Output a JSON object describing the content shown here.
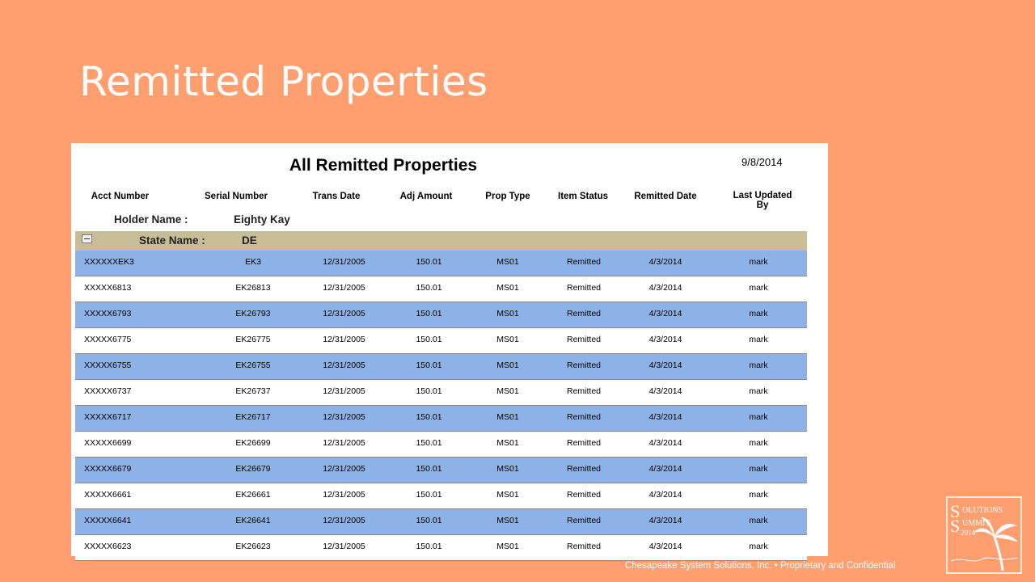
{
  "slide": {
    "title": "Remitted Properties",
    "footer": "Chesapeake System Solutions, Inc. • Proprietary and Confidential",
    "logo": {
      "line1": "OLUTIONS",
      "line2": "UMMIT",
      "year": "2014",
      "icon": "palm-tree-icon"
    }
  },
  "report": {
    "title": "All Remitted Properties",
    "date": "9/8/2014",
    "columns": {
      "acct": "Acct Number",
      "serial": "Serial Number",
      "trans_date": "Trans Date",
      "adj_amount": "Adj Amount",
      "prop_type": "Prop Type",
      "item_status": "Item Status",
      "remitted_date": "Remitted Date",
      "last_updated_by_1": "Last Updated",
      "last_updated_by_2": "By"
    },
    "holder": {
      "label": "Holder Name :",
      "value": "Eighty Kay"
    },
    "state": {
      "label": "State Name :",
      "value": "DE"
    },
    "rows": [
      {
        "acct": "XXXXXXEK3",
        "serial": "EK3",
        "trans_date": "12/31/2005",
        "adj_amount": "150.01",
        "prop_type": "MS01",
        "status": "Remitted",
        "remitted_date": "4/3/2014",
        "updated_by": "mark"
      },
      {
        "acct": "XXXXX6813",
        "serial": "EK26813",
        "trans_date": "12/31/2005",
        "adj_amount": "150.01",
        "prop_type": "MS01",
        "status": "Remitted",
        "remitted_date": "4/3/2014",
        "updated_by": "mark"
      },
      {
        "acct": "XXXXX6793",
        "serial": "EK26793",
        "trans_date": "12/31/2005",
        "adj_amount": "150.01",
        "prop_type": "MS01",
        "status": "Remitted",
        "remitted_date": "4/3/2014",
        "updated_by": "mark"
      },
      {
        "acct": "XXXXX6775",
        "serial": "EK26775",
        "trans_date": "12/31/2005",
        "adj_amount": "150.01",
        "prop_type": "MS01",
        "status": "Remitted",
        "remitted_date": "4/3/2014",
        "updated_by": "mark"
      },
      {
        "acct": "XXXXX6755",
        "serial": "EK26755",
        "trans_date": "12/31/2005",
        "adj_amount": "150.01",
        "prop_type": "MS01",
        "status": "Remitted",
        "remitted_date": "4/3/2014",
        "updated_by": "mark"
      },
      {
        "acct": "XXXXX6737",
        "serial": "EK26737",
        "trans_date": "12/31/2005",
        "adj_amount": "150.01",
        "prop_type": "MS01",
        "status": "Remitted",
        "remitted_date": "4/3/2014",
        "updated_by": "mark"
      },
      {
        "acct": "XXXXX6717",
        "serial": "EK26717",
        "trans_date": "12/31/2005",
        "adj_amount": "150.01",
        "prop_type": "MS01",
        "status": "Remitted",
        "remitted_date": "4/3/2014",
        "updated_by": "mark"
      },
      {
        "acct": "XXXXX6699",
        "serial": "EK26699",
        "trans_date": "12/31/2005",
        "adj_amount": "150.01",
        "prop_type": "MS01",
        "status": "Remitted",
        "remitted_date": "4/3/2014",
        "updated_by": "mark"
      },
      {
        "acct": "XXXXX6679",
        "serial": "EK26679",
        "trans_date": "12/31/2005",
        "adj_amount": "150.01",
        "prop_type": "MS01",
        "status": "Remitted",
        "remitted_date": "4/3/2014",
        "updated_by": "mark"
      },
      {
        "acct": "XXXXX6661",
        "serial": "EK26661",
        "trans_date": "12/31/2005",
        "adj_amount": "150.01",
        "prop_type": "MS01",
        "status": "Remitted",
        "remitted_date": "4/3/2014",
        "updated_by": "mark"
      },
      {
        "acct": "XXXXX6641",
        "serial": "EK26641",
        "trans_date": "12/31/2005",
        "adj_amount": "150.01",
        "prop_type": "MS01",
        "status": "Remitted",
        "remitted_date": "4/3/2014",
        "updated_by": "mark"
      },
      {
        "acct": "XXXXX6623",
        "serial": "EK26623",
        "trans_date": "12/31/2005",
        "adj_amount": "150.01",
        "prop_type": "MS01",
        "status": "Remitted",
        "remitted_date": "4/3/2014",
        "updated_by": "mark"
      }
    ]
  },
  "colors": {
    "background": "#FF9E6E",
    "alt_row": "#8EB1E8",
    "group_bar": "#C8BE96"
  }
}
